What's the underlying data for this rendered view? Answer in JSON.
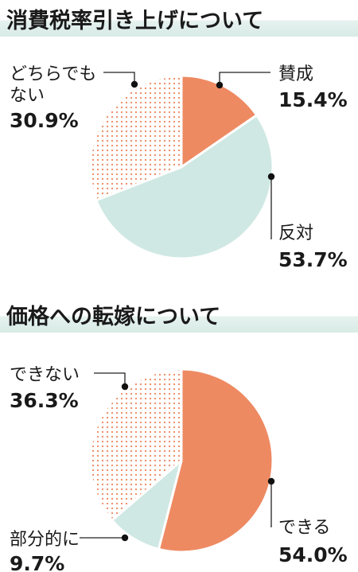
{
  "charts": [
    {
      "title": "消費税率引き上げについて",
      "chart_data": {
        "type": "pie",
        "title": "消費税率引き上げについて",
        "slices": [
          {
            "label": "賛成",
            "value": 15.4,
            "value_text": "15.4%",
            "color": "#ee8a62",
            "pattern": "solid"
          },
          {
            "label": "反対",
            "value": 53.7,
            "value_text": "53.7%",
            "color": "#cfe8e3",
            "pattern": "solid"
          },
          {
            "label": "どちらでも ない",
            "label_lines": [
              "どちらでも",
              "ない"
            ],
            "value": 30.9,
            "value_text": "30.9%",
            "color": "#ee8a62",
            "pattern": "dots"
          }
        ]
      }
    },
    {
      "title": "価格への転嫁について",
      "chart_data": {
        "type": "pie",
        "title": "価格への転嫁について",
        "slices": [
          {
            "label": "できる",
            "value": 54.0,
            "value_text": "54.0%",
            "color": "#ee8a62",
            "pattern": "solid"
          },
          {
            "label": "部分的に",
            "value": 9.7,
            "value_text": "9.7%",
            "color": "#cfe8e3",
            "pattern": "solid"
          },
          {
            "label": "できない",
            "value": 36.3,
            "value_text": "36.3%",
            "color": "#ee8a62",
            "pattern": "dots"
          }
        ]
      }
    }
  ]
}
